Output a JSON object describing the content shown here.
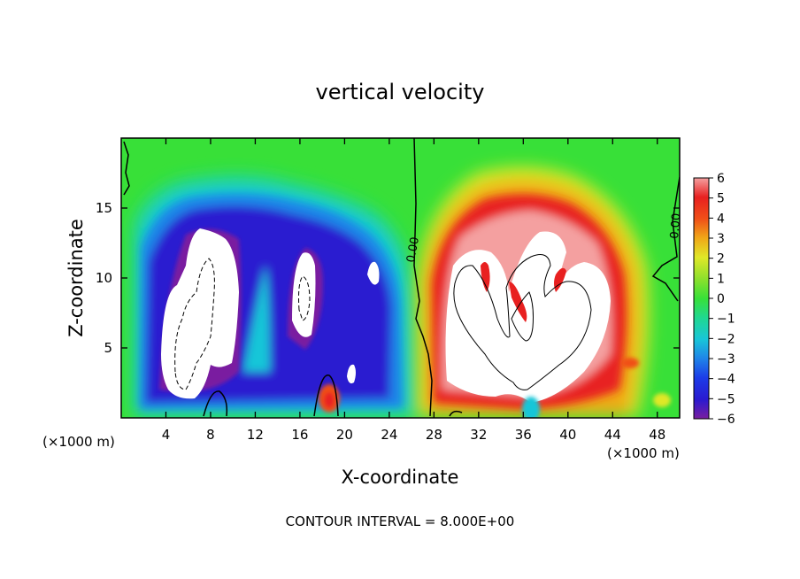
{
  "title": "vertical velocity",
  "footer": "CONTOUR INTERVAL = 8.000E+00",
  "chart_data": {
    "type": "heatmap",
    "title": "vertical velocity",
    "xlabel": "X-coordinate",
    "ylabel": "Z-coordinate",
    "x_unit": "(×1000 m)",
    "y_unit": "(×1000 m)",
    "xlim": [
      0,
      50
    ],
    "ylim": [
      0,
      20
    ],
    "xticks": [
      4,
      8,
      12,
      16,
      20,
      24,
      28,
      32,
      36,
      40,
      44,
      48
    ],
    "yticks": [
      5,
      10,
      15
    ],
    "colorbar": {
      "range": [
        -6,
        6
      ],
      "ticks": [
        6,
        5,
        4,
        3,
        2,
        1,
        0,
        -1,
        -2,
        -3,
        -4,
        -5,
        -6
      ],
      "colors": {
        "-6": "#7a1fa0",
        "-5": "#2a1ad0",
        "-4": "#1c3ce8",
        "-3": "#1f84e8",
        "-2": "#18c6d8",
        "-1": "#20d890",
        "0": "#38e038",
        "1": "#8ce02c",
        "2": "#e0e828",
        "3": "#f0a818",
        "4": "#f05018",
        "5": "#e82020",
        "6": "#f4a0a0"
      },
      "overflow_color": "#ffffff"
    },
    "contour_labels": [
      "0.00",
      "0.00"
    ],
    "zero_contour_x": [
      27,
      49
    ]
  }
}
